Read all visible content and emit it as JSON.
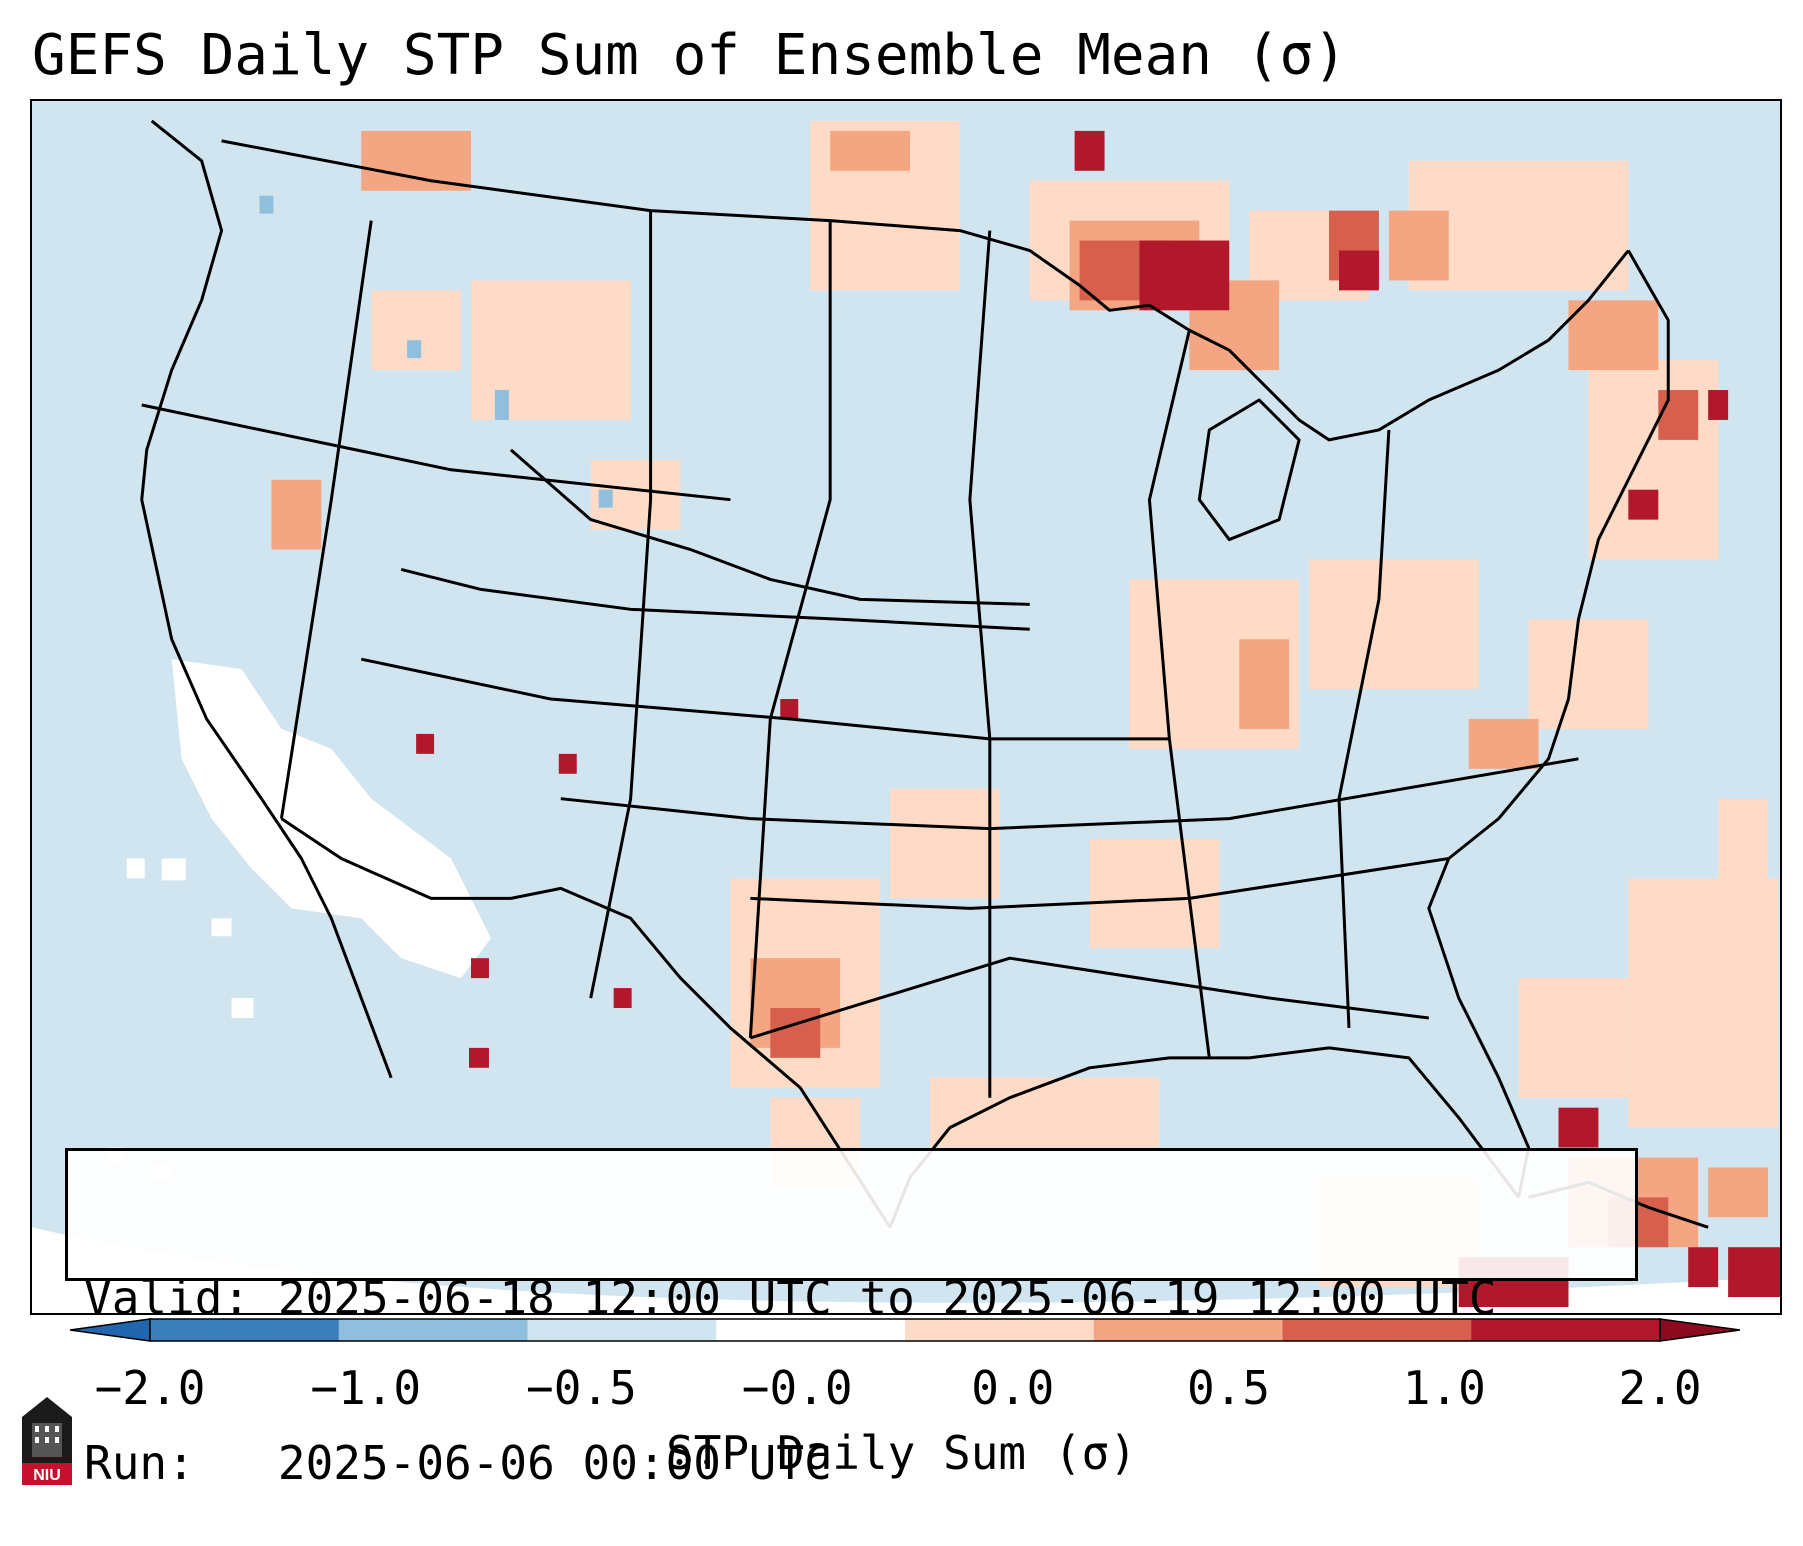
{
  "title": "GEFS Daily STP Sum of Ensemble Mean (σ)",
  "info": {
    "valid_label": "Valid:",
    "valid_value": "2025-06-18 12:00 UTC to 2025-06-19 12:00 UTC",
    "run_label": "Run:",
    "run_value": "2025-06-06 00:00 UTC"
  },
  "colorbar": {
    "label": "STP Daily Sum (σ)",
    "ticks": [
      "−2.0",
      "−1.0",
      "−0.5",
      "−0.0",
      "0.0",
      "0.5",
      "1.0",
      "2.0"
    ],
    "colors": [
      "#3a7fb9",
      "#8fbfdc",
      "#d1e5f0",
      "#ffffff",
      "#fddbc7",
      "#f4a582",
      "#d6604d",
      "#b2182b"
    ],
    "extend": "both"
  },
  "map": {
    "background_color": "#d1e5f0",
    "land_border_color": "#000000",
    "region": "CONUS"
  },
  "logo": {
    "text": "NIU"
  }
}
